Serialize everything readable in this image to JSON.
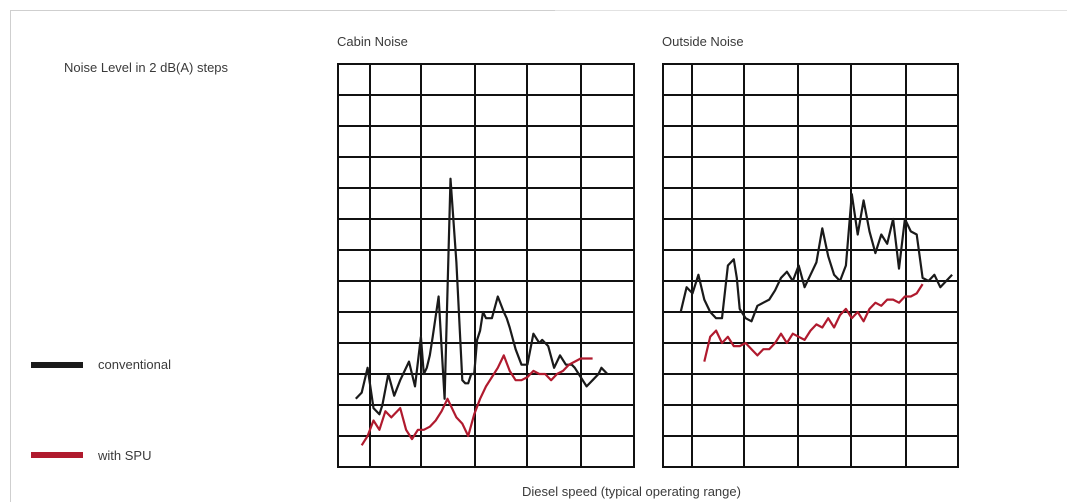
{
  "chart_data": [
    {
      "type": "line",
      "title": "Cabin Noise",
      "xlabel": "Diesel speed (typical operating range)",
      "ylabel": "Noise Level in 2 dB(A) steps",
      "grid": true,
      "xlim": [
        0,
        100
      ],
      "ylim": [
        0,
        13
      ],
      "series": [
        {
          "name": "conventional",
          "color": "#1a1a1a",
          "x": [
            6,
            8,
            10,
            12,
            14,
            15,
            17,
            19,
            21,
            24,
            26,
            28,
            29,
            30,
            31,
            32,
            34,
            36,
            38,
            40,
            42,
            43,
            44,
            45,
            46,
            47,
            48,
            49,
            50,
            52,
            54,
            56,
            57,
            58,
            60,
            62,
            64,
            66,
            68,
            69,
            71,
            73,
            75,
            77,
            79,
            80,
            82,
            84,
            86,
            88,
            89,
            91
          ],
          "y": [
            2.2,
            2.4,
            3.2,
            1.9,
            1.7,
            2.0,
            3.0,
            2.3,
            2.8,
            3.4,
            2.6,
            4.2,
            3.0,
            3.2,
            3.6,
            4.2,
            5.5,
            2.2,
            9.3,
            6.6,
            2.8,
            2.7,
            2.7,
            3.0,
            3.0,
            4.1,
            4.4,
            5.0,
            4.8,
            4.8,
            5.5,
            5.0,
            4.8,
            4.5,
            3.8,
            3.3,
            3.3,
            4.3,
            4.0,
            4.1,
            3.9,
            3.2,
            3.6,
            3.3,
            3.3,
            3.2,
            2.9,
            2.6,
            2.8,
            3.0,
            3.2,
            3.0
          ]
        },
        {
          "name": "with SPU",
          "color": "#b01a2e",
          "x": [
            8,
            10,
            12,
            14,
            16,
            18,
            20,
            21,
            23,
            25,
            27,
            29,
            31,
            33,
            35,
            37,
            39,
            40,
            42,
            44,
            46,
            48,
            50,
            52,
            54,
            56,
            58,
            60,
            62,
            64,
            66,
            68,
            70,
            72,
            74,
            76,
            78,
            80,
            82,
            84,
            86
          ],
          "y": [
            0.7,
            1.0,
            1.5,
            1.2,
            1.8,
            1.6,
            1.8,
            1.9,
            1.2,
            0.9,
            1.2,
            1.2,
            1.3,
            1.5,
            1.8,
            2.2,
            1.8,
            1.6,
            1.4,
            1.0,
            1.7,
            2.2,
            2.6,
            2.9,
            3.2,
            3.6,
            3.1,
            2.8,
            2.8,
            2.9,
            3.1,
            3.0,
            3.0,
            2.8,
            3.0,
            3.1,
            3.3,
            3.4,
            3.5,
            3.5,
            3.5
          ]
        }
      ]
    },
    {
      "type": "line",
      "title": "Outside Noise",
      "xlabel": "Diesel speed (typical operating range)",
      "ylabel": "Noise Level in 2 dB(A) steps",
      "grid": true,
      "xlim": [
        0,
        100
      ],
      "ylim": [
        0,
        13
      ],
      "series": [
        {
          "name": "conventional",
          "color": "#1a1a1a",
          "x": [
            6,
            8,
            10,
            12,
            14,
            16,
            18,
            20,
            22,
            24,
            25,
            26,
            28,
            30,
            32,
            34,
            36,
            38,
            40,
            42,
            44,
            46,
            48,
            50,
            52,
            54,
            56,
            58,
            60,
            62,
            64,
            66,
            68,
            70,
            72,
            74,
            76,
            78,
            80,
            82,
            84,
            86,
            88,
            90,
            92,
            94,
            96,
            98
          ],
          "y": [
            5.0,
            5.8,
            5.6,
            6.2,
            5.4,
            5.0,
            4.8,
            4.8,
            6.5,
            6.7,
            6.1,
            5.1,
            4.8,
            4.7,
            5.2,
            5.3,
            5.4,
            5.7,
            6.1,
            6.3,
            6.0,
            6.5,
            5.8,
            6.2,
            6.6,
            7.7,
            6.8,
            6.2,
            6.0,
            6.5,
            8.8,
            7.5,
            8.6,
            7.6,
            6.9,
            7.5,
            7.2,
            8.0,
            6.4,
            8.0,
            7.6,
            7.5,
            6.1,
            6.0,
            6.2,
            5.8,
            6.0,
            6.2
          ]
        },
        {
          "name": "with SPU",
          "color": "#b01a2e",
          "x": [
            14,
            16,
            18,
            20,
            22,
            24,
            26,
            28,
            30,
            32,
            34,
            36,
            38,
            40,
            42,
            44,
            46,
            48,
            50,
            52,
            54,
            56,
            58,
            60,
            62,
            64,
            66,
            68,
            70,
            72,
            74,
            76,
            78,
            80,
            82,
            84,
            86,
            88
          ],
          "y": [
            3.4,
            4.2,
            4.4,
            4.0,
            4.2,
            3.9,
            3.9,
            4.0,
            3.8,
            3.6,
            3.8,
            3.8,
            4.0,
            4.3,
            4.0,
            4.3,
            4.2,
            4.1,
            4.4,
            4.6,
            4.5,
            4.8,
            4.5,
            4.9,
            5.1,
            4.8,
            5.0,
            4.7,
            5.1,
            5.3,
            5.2,
            5.4,
            5.4,
            5.3,
            5.5,
            5.5,
            5.6,
            5.9
          ]
        }
      ]
    }
  ],
  "legend": [
    {
      "label": "conventional",
      "color": "#1a1a1a"
    },
    {
      "label": "with SPU",
      "color": "#b01a2e"
    }
  ]
}
